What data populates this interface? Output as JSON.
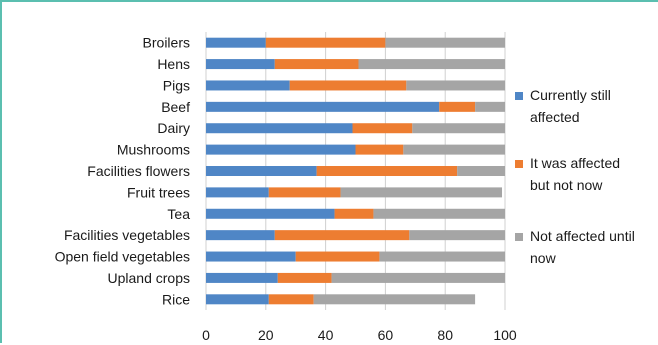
{
  "chart_data": {
    "type": "bar",
    "orientation": "horizontal",
    "stacked": true,
    "categories": [
      "Broilers",
      "Hens",
      "Pigs",
      "Beef",
      "Dairy",
      "Mushrooms",
      "Facilities flowers",
      "Fruit trees",
      "Tea",
      "Facilities vegetables",
      "Open field vegetables",
      "Upland crops",
      "Rice"
    ],
    "series": [
      {
        "name": "Currently still affected",
        "color": "#4f86c6",
        "values": [
          20,
          23,
          28,
          78,
          49,
          50,
          37,
          21,
          43,
          23,
          30,
          24,
          21
        ]
      },
      {
        "name": "It was affected but not now",
        "color": "#ed7d31",
        "values": [
          40,
          28,
          39,
          12,
          20,
          16,
          47,
          24,
          13,
          45,
          28,
          18,
          15
        ]
      },
      {
        "name": "Not affected until now",
        "color": "#a5a5a5",
        "values": [
          40,
          49,
          33,
          10,
          31,
          34,
          16,
          54,
          44,
          32,
          42,
          58,
          54
        ]
      }
    ],
    "xlim": [
      0,
      100
    ],
    "xticks": [
      0,
      20,
      40,
      60,
      80,
      100
    ],
    "grid": true,
    "legend_position": "right"
  }
}
